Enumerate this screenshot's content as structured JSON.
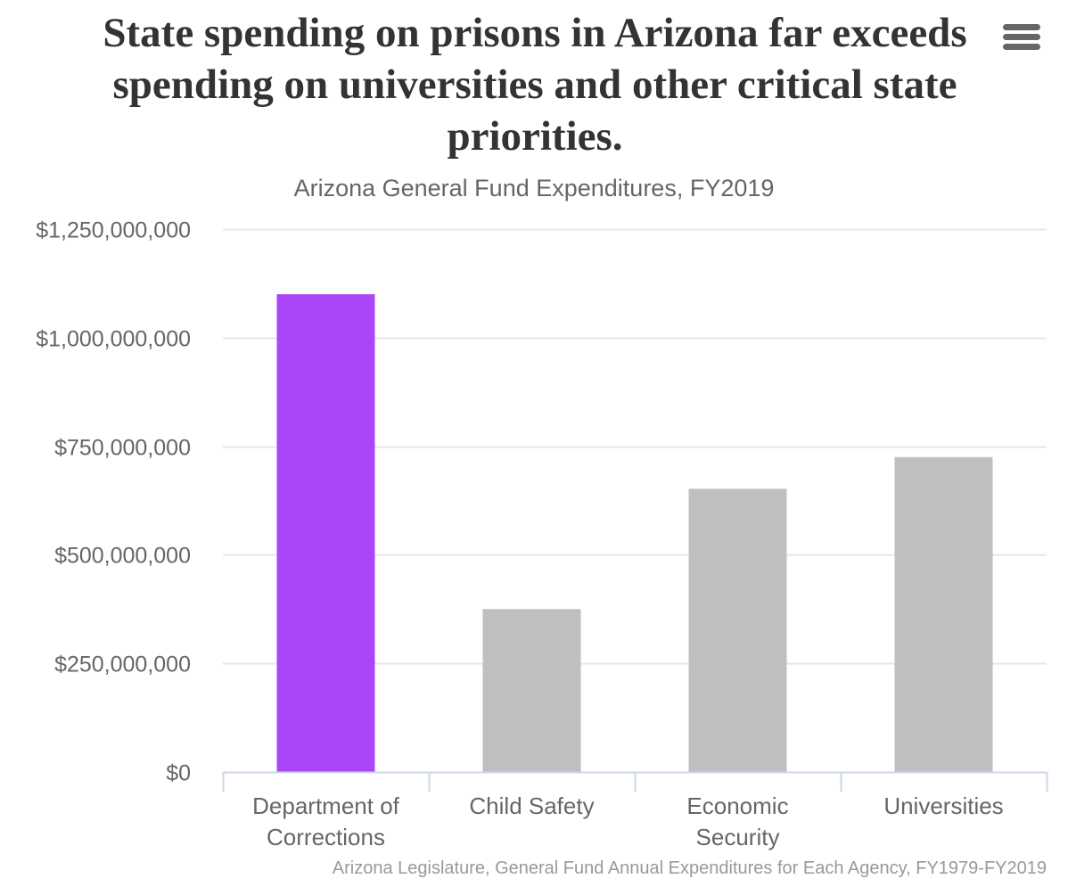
{
  "header": {
    "title": "State spending on prisons in Arizona far exceeds spending on universities and other critical state priorities.",
    "subtitle": "Arizona General Fund Expenditures, FY2019",
    "menu_icon": "hamburger-menu-icon"
  },
  "credits": "Arizona Legislature, General Fund Annual Expenditures for Each Agency, FY1979-FY2019",
  "chart_data": {
    "type": "bar",
    "title": "State spending on prisons in Arizona far exceeds spending on universities and other critical state priorities.",
    "subtitle": "Arizona General Fund Expenditures, FY2019",
    "categories": [
      [
        "Department of",
        "Corrections"
      ],
      [
        "Child Safety"
      ],
      [
        "Economic",
        "Security"
      ],
      [
        "Universities"
      ]
    ],
    "category_names": [
      "Department of Corrections",
      "Child Safety",
      "Economic Security",
      "Universities"
    ],
    "values": [
      1100000000,
      375000000,
      652000000,
      725000000
    ],
    "colors": [
      "#aa46f8",
      "#bfbfbf",
      "#bfbfbf",
      "#bfbfbf"
    ],
    "ylim": [
      0,
      1250000000
    ],
    "yticks": [
      0,
      250000000,
      500000000,
      750000000,
      1000000000,
      1250000000
    ],
    "ytick_labels": [
      "$0",
      "$250,000,000",
      "$500,000,000",
      "$750,000,000",
      "$1,000,000,000",
      "$1,250,000,000"
    ],
    "xlabel": "",
    "ylabel": "",
    "grid": true,
    "legend": "none",
    "gridline_color": "#e6e6e6",
    "axis_color": "#ccd6eb",
    "label_color": "#666666"
  }
}
